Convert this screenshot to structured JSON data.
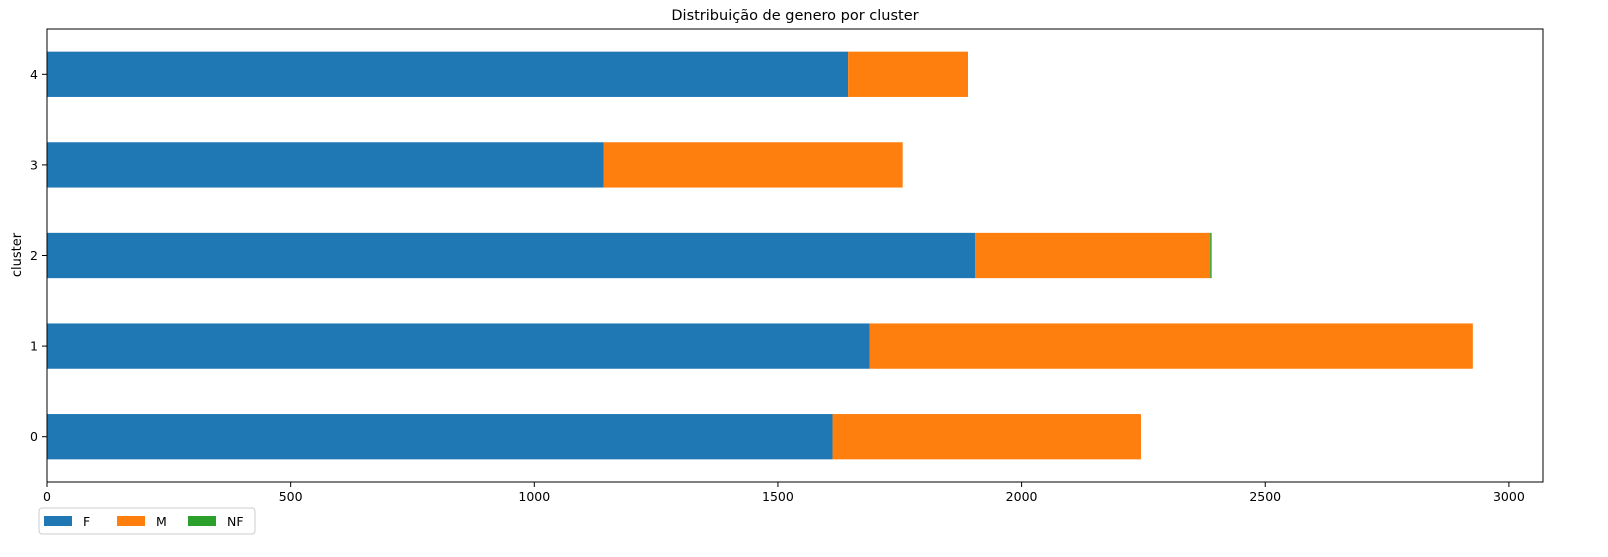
{
  "chart_data": {
    "type": "bar",
    "orientation": "horizontal",
    "stacked": true,
    "title": "Distribuição de genero por cluster",
    "xlabel": "",
    "ylabel": "cluster",
    "categories": [
      "0",
      "1",
      "2",
      "3",
      "4"
    ],
    "series": [
      {
        "name": "F",
        "color": "#1f77b4",
        "values": [
          1612,
          1688,
          1905,
          1142,
          1644
        ]
      },
      {
        "name": "M",
        "color": "#ff7f0e",
        "values": [
          633,
          1238,
          482,
          614,
          246
        ]
      },
      {
        "name": "NF",
        "color": "#2ca02c",
        "values": [
          0,
          0,
          3,
          0,
          0
        ]
      }
    ],
    "xlim": [
      0,
      3070
    ],
    "xticks": [
      0,
      500,
      1000,
      1500,
      2000,
      2500,
      3000
    ],
    "xtick_labels": [
      "0",
      "500",
      "1000",
      "1500",
      "2000",
      "2500",
      "3000"
    ],
    "grid": false,
    "legend_position": "bottom-left, below axes"
  }
}
